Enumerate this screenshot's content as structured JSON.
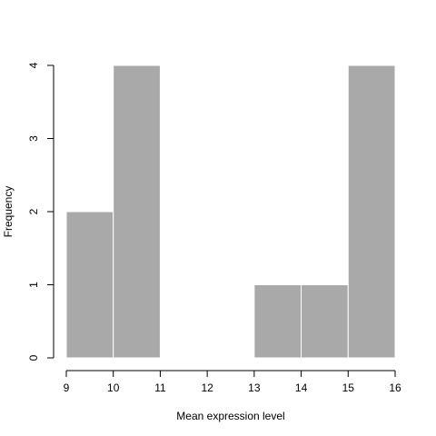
{
  "chart_data": {
    "type": "bar",
    "title": "",
    "xlabel": "Mean expression level",
    "ylabel": "Frequency",
    "bins": [
      {
        "start": 9,
        "end": 10,
        "count": 2
      },
      {
        "start": 10,
        "end": 11,
        "count": 4
      },
      {
        "start": 11,
        "end": 12,
        "count": 0
      },
      {
        "start": 12,
        "end": 13,
        "count": 0
      },
      {
        "start": 13,
        "end": 14,
        "count": 1
      },
      {
        "start": 14,
        "end": 15,
        "count": 1
      },
      {
        "start": 15,
        "end": 16,
        "count": 4
      }
    ],
    "xlim": [
      9,
      16
    ],
    "ylim": [
      0,
      4
    ],
    "xticks": [
      "9",
      "10",
      "11",
      "12",
      "13",
      "14",
      "15",
      "16"
    ],
    "yticks": [
      "0",
      "1",
      "2",
      "3",
      "4"
    ],
    "bar_color": "#a9a9a9",
    "grid": false
  }
}
